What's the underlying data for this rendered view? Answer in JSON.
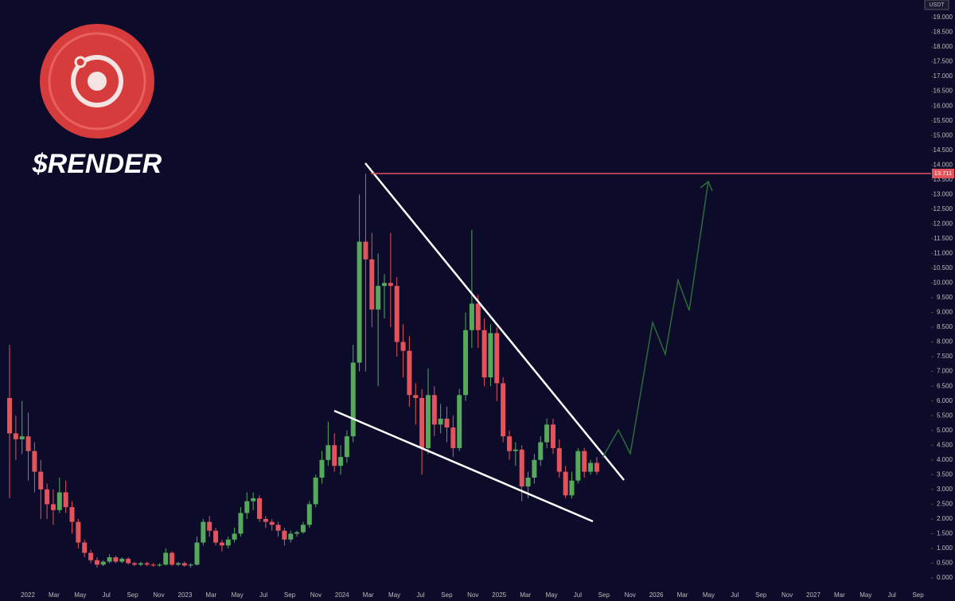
{
  "chart_data": {
    "type": "candlestick",
    "title": "$RENDER",
    "currency": "USDT",
    "up_color": "#55a85c",
    "down_color": "#e2535c",
    "candles": [
      [
        6.1,
        7.9,
        2.7,
        4.9
      ],
      [
        4.9,
        5.5,
        4.0,
        4.7
      ],
      [
        4.7,
        6.0,
        4.2,
        4.8
      ],
      [
        4.8,
        5.6,
        3.3,
        4.3
      ],
      [
        4.3,
        4.6,
        2.9,
        3.6
      ],
      [
        3.6,
        4.0,
        2.0,
        3.0
      ],
      [
        3.0,
        3.2,
        2.0,
        2.5
      ],
      [
        2.5,
        3.0,
        1.8,
        2.3
      ],
      [
        2.3,
        3.4,
        2.2,
        2.9
      ],
      [
        2.9,
        3.3,
        2.2,
        2.4
      ],
      [
        2.4,
        2.6,
        1.5,
        1.9
      ],
      [
        1.9,
        2.0,
        1.0,
        1.2
      ],
      [
        1.2,
        1.3,
        0.7,
        0.85
      ],
      [
        0.85,
        0.95,
        0.5,
        0.6
      ],
      [
        0.6,
        0.7,
        0.35,
        0.45
      ],
      [
        0.45,
        0.6,
        0.4,
        0.55
      ],
      [
        0.55,
        0.8,
        0.5,
        0.7
      ],
      [
        0.7,
        0.75,
        0.5,
        0.55
      ],
      [
        0.55,
        0.7,
        0.5,
        0.65
      ],
      [
        0.65,
        0.7,
        0.45,
        0.5
      ],
      [
        0.5,
        0.55,
        0.4,
        0.45
      ],
      [
        0.45,
        0.55,
        0.4,
        0.5
      ],
      [
        0.5,
        0.55,
        0.4,
        0.45
      ],
      [
        0.45,
        0.5,
        0.38,
        0.42
      ],
      [
        0.42,
        0.5,
        0.38,
        0.45
      ],
      [
        0.45,
        1.0,
        0.42,
        0.85
      ],
      [
        0.85,
        0.9,
        0.4,
        0.45
      ],
      [
        0.45,
        0.55,
        0.4,
        0.5
      ],
      [
        0.5,
        0.55,
        0.38,
        0.42
      ],
      [
        0.42,
        0.5,
        0.35,
        0.45
      ],
      [
        0.45,
        1.4,
        0.42,
        1.2
      ],
      [
        1.2,
        2.0,
        1.1,
        1.9
      ],
      [
        1.9,
        2.1,
        1.4,
        1.6
      ],
      [
        1.6,
        1.7,
        1.1,
        1.2
      ],
      [
        1.2,
        1.3,
        0.9,
        1.1
      ],
      [
        1.1,
        1.4,
        1.0,
        1.3
      ],
      [
        1.3,
        1.7,
        1.2,
        1.5
      ],
      [
        1.5,
        2.4,
        1.4,
        2.2
      ],
      [
        2.2,
        2.9,
        2.0,
        2.6
      ],
      [
        2.6,
        2.9,
        2.3,
        2.7
      ],
      [
        2.7,
        2.8,
        1.9,
        2.0
      ],
      [
        2.0,
        2.1,
        1.7,
        1.9
      ],
      [
        1.9,
        2.0,
        1.6,
        1.8
      ],
      [
        1.8,
        1.9,
        1.4,
        1.6
      ],
      [
        1.6,
        1.7,
        1.1,
        1.3
      ],
      [
        1.3,
        1.6,
        1.2,
        1.5
      ],
      [
        1.5,
        1.6,
        1.4,
        1.55
      ],
      [
        1.55,
        1.9,
        1.5,
        1.8
      ],
      [
        1.8,
        2.6,
        1.7,
        2.5
      ],
      [
        2.5,
        3.5,
        2.4,
        3.4
      ],
      [
        3.4,
        4.3,
        3.2,
        4.0
      ],
      [
        4.0,
        5.3,
        3.8,
        4.5
      ],
      [
        4.5,
        4.9,
        3.6,
        3.8
      ],
      [
        3.8,
        4.5,
        3.5,
        4.1
      ],
      [
        4.1,
        5.0,
        3.9,
        4.8
      ],
      [
        4.8,
        7.9,
        4.6,
        7.3
      ],
      [
        7.3,
        13.0,
        7.0,
        11.4
      ],
      [
        11.4,
        13.7,
        7.0,
        10.8
      ],
      [
        10.8,
        11.7,
        8.5,
        9.1
      ],
      [
        9.1,
        11.0,
        6.5,
        9.9
      ],
      [
        9.9,
        10.3,
        8.8,
        10.0
      ],
      [
        10.0,
        11.7,
        8.5,
        9.9
      ],
      [
        9.9,
        10.2,
        7.5,
        8.0
      ],
      [
        8.0,
        8.6,
        6.8,
        7.7
      ],
      [
        7.7,
        8.2,
        5.8,
        6.2
      ],
      [
        6.2,
        6.6,
        5.2,
        6.1
      ],
      [
        6.1,
        6.4,
        3.5,
        4.4
      ],
      [
        4.4,
        7.1,
        4.2,
        6.2
      ],
      [
        6.2,
        6.5,
        4.8,
        5.2
      ],
      [
        5.2,
        5.9,
        4.9,
        5.4
      ],
      [
        5.4,
        5.8,
        4.6,
        5.1
      ],
      [
        5.1,
        5.5,
        4.1,
        4.4
      ],
      [
        4.4,
        6.4,
        4.3,
        6.2
      ],
      [
        6.2,
        9.0,
        6.0,
        8.4
      ],
      [
        8.4,
        11.8,
        7.8,
        9.3
      ],
      [
        9.3,
        9.6,
        7.8,
        8.4
      ],
      [
        8.4,
        8.8,
        6.5,
        6.8
      ],
      [
        6.8,
        8.6,
        6.5,
        8.3
      ],
      [
        8.3,
        8.5,
        6.0,
        6.6
      ],
      [
        6.6,
        6.8,
        4.6,
        4.8
      ],
      [
        4.8,
        5.0,
        4.0,
        4.3
      ],
      [
        4.3,
        4.6,
        3.8,
        4.35
      ],
      [
        4.35,
        4.5,
        2.6,
        3.1
      ],
      [
        3.1,
        3.6,
        2.7,
        3.4
      ],
      [
        3.4,
        4.2,
        3.2,
        4.0
      ],
      [
        4.0,
        4.8,
        3.8,
        4.6
      ],
      [
        4.6,
        5.4,
        4.4,
        5.2
      ],
      [
        5.2,
        5.4,
        4.2,
        4.4
      ],
      [
        4.4,
        4.7,
        3.4,
        3.6
      ],
      [
        3.6,
        3.8,
        2.7,
        2.8
      ],
      [
        2.8,
        3.6,
        2.7,
        3.3
      ],
      [
        3.3,
        4.4,
        3.2,
        4.3
      ],
      [
        4.3,
        4.4,
        3.4,
        3.6
      ],
      [
        3.6,
        4.0,
        3.5,
        3.9
      ],
      [
        3.9,
        4.1,
        3.5,
        3.6
      ]
    ],
    "x_labels": [
      "2022",
      "Mar",
      "May",
      "Jul",
      "Sep",
      "Nov",
      "2023",
      "Mar",
      "May",
      "Jul",
      "Sep",
      "Nov",
      "2024",
      "Mar",
      "May",
      "Jul",
      "Sep",
      "Nov",
      "2025",
      "Mar",
      "May",
      "Jul",
      "Sep",
      "Nov",
      "2026",
      "Mar",
      "May",
      "Jul",
      "Sep",
      "Nov",
      "2027",
      "Mar",
      "May",
      "Jul",
      "Sep"
    ],
    "ylim": [
      0,
      19.25
    ],
    "yticks": [
      {
        "value": 0,
        "label": "0.000"
      },
      {
        "value": 0.5,
        "label": "0.500"
      },
      {
        "value": 1,
        "label": "1.000"
      },
      {
        "value": 1.5,
        "label": "1.500"
      },
      {
        "value": 2,
        "label": "2.000"
      },
      {
        "value": 2.5,
        "label": "2.500"
      },
      {
        "value": 3,
        "label": "3.000"
      },
      {
        "value": 3.5,
        "label": "3.500"
      },
      {
        "value": 4,
        "label": "4.000"
      },
      {
        "value": 4.5,
        "label": "4.500"
      },
      {
        "value": 5,
        "label": "5.000"
      },
      {
        "value": 5.5,
        "label": "5.500"
      },
      {
        "value": 6,
        "label": "6.000"
      },
      {
        "value": 6.5,
        "label": "6.500"
      },
      {
        "value": 7,
        "label": "7.000"
      },
      {
        "value": 7.5,
        "label": "7.500"
      },
      {
        "value": 8,
        "label": "8.000"
      },
      {
        "value": 8.5,
        "label": "8.500"
      },
      {
        "value": 9,
        "label": "9.000"
      },
      {
        "value": 9.5,
        "label": "9.500"
      },
      {
        "value": 10,
        "label": "10.000"
      },
      {
        "value": 10.5,
        "label": "10.500"
      },
      {
        "value": 11,
        "label": "11.000"
      },
      {
        "value": 11.5,
        "label": "11.500"
      },
      {
        "value": 12,
        "label": "12.000"
      },
      {
        "value": 12.5,
        "label": "12.500"
      },
      {
        "value": 13,
        "label": "13.000"
      },
      {
        "value": 13.5,
        "label": "13.500"
      },
      {
        "value": 14,
        "label": "14.000"
      },
      {
        "value": 14.5,
        "label": "14.500"
      },
      {
        "value": 15,
        "label": "15.000"
      },
      {
        "value": 15.5,
        "label": "15.500"
      },
      {
        "value": 16,
        "label": "16.000"
      },
      {
        "value": 16.5,
        "label": "16.500"
      },
      {
        "value": 17,
        "label": "17.000"
      },
      {
        "value": 17.5,
        "label": "17.500"
      },
      {
        "value": 18,
        "label": "18.000"
      },
      {
        "value": 18.5,
        "label": "18.500"
      },
      {
        "value": 19,
        "label": "19.000"
      }
    ],
    "level": {
      "value": 13.711,
      "color": "#e2535c"
    }
  }
}
